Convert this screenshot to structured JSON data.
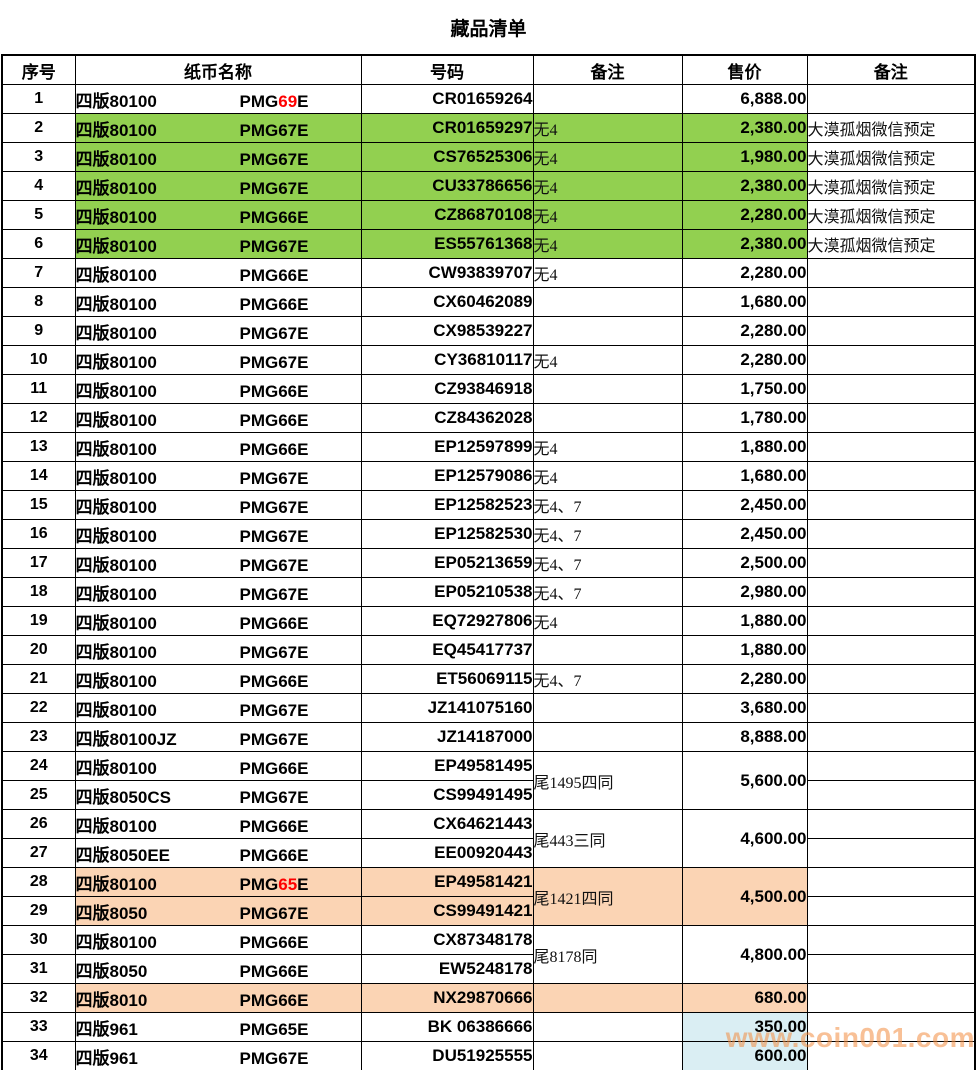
{
  "title": "藏品清单",
  "watermark": "www.coin001.com",
  "colors": {
    "highlight_green": "#92D050",
    "highlight_peach": "#FBD4B4",
    "highlight_blue": "#DAEEF3",
    "grade_red": "#FF0000",
    "watermark_orange": "#F28C40"
  },
  "table": {
    "headers": [
      "序号",
      "纸币名称",
      "号码",
      "备注",
      "售价",
      "备注"
    ],
    "rows": [
      {
        "no": "1",
        "name": "四版80100",
        "grade_parts": [
          "PMG",
          "69",
          "E"
        ],
        "number": "CR01659264",
        "remark": "",
        "price": "6,888.00",
        "note": ""
      },
      {
        "no": "2",
        "name": "四版80100",
        "grade": "PMG67E",
        "number": "CR01659297",
        "remark": "无4",
        "price": "2,380.00",
        "note": "大漠孤烟微信预定",
        "bg": "green"
      },
      {
        "no": "3",
        "name": "四版80100",
        "grade": "PMG67E",
        "number": "CS76525306",
        "remark": "无4",
        "price": "1,980.00",
        "note": "大漠孤烟微信预定",
        "bg": "green"
      },
      {
        "no": "4",
        "name": "四版80100",
        "grade": "PMG67E",
        "number": "CU33786656",
        "remark": "无4",
        "price": "2,380.00",
        "note": "大漠孤烟微信预定",
        "bg": "green"
      },
      {
        "no": "5",
        "name": "四版80100",
        "grade": "PMG66E",
        "number": "CZ86870108",
        "remark": "无4",
        "price": "2,280.00",
        "note": "大漠孤烟微信预定",
        "bg": "green"
      },
      {
        "no": "6",
        "name": "四版80100",
        "grade": "PMG67E",
        "number": "ES55761368",
        "remark": "无4",
        "price": "2,380.00",
        "note": "大漠孤烟微信预定",
        "bg": "green"
      },
      {
        "no": "7",
        "name": "四版80100",
        "grade": "PMG66E",
        "number": "CW93839707",
        "remark": "无4",
        "price": "2,280.00",
        "note": ""
      },
      {
        "no": "8",
        "name": "四版80100",
        "grade": "PMG66E",
        "number": "CX60462089",
        "remark": "",
        "price": "1,680.00",
        "note": ""
      },
      {
        "no": "9",
        "name": "四版80100",
        "grade": "PMG67E",
        "number": "CX98539227",
        "remark": "",
        "price": "2,280.00",
        "note": ""
      },
      {
        "no": "10",
        "name": "四版80100",
        "grade": "PMG67E",
        "number": "CY36810117",
        "remark": "无4",
        "price": "2,280.00",
        "note": ""
      },
      {
        "no": "11",
        "name": "四版80100",
        "grade": "PMG66E",
        "number": "CZ93846918",
        "remark": "",
        "price": "1,750.00",
        "note": ""
      },
      {
        "no": "12",
        "name": "四版80100",
        "grade": "PMG66E",
        "number": "CZ84362028",
        "remark": "",
        "price": "1,780.00",
        "note": ""
      },
      {
        "no": "13",
        "name": "四版80100",
        "grade": "PMG66E",
        "number": "EP12597899",
        "remark": "无4",
        "price": "1,880.00",
        "note": ""
      },
      {
        "no": "14",
        "name": "四版80100",
        "grade": "PMG67E",
        "number": "EP12579086",
        "remark": "无4",
        "price": "1,680.00",
        "note": ""
      },
      {
        "no": "15",
        "name": "四版80100",
        "grade": "PMG67E",
        "number": "EP12582523",
        "remark": "无4、7",
        "price": "2,450.00",
        "note": ""
      },
      {
        "no": "16",
        "name": "四版80100",
        "grade": "PMG67E",
        "number": "EP12582530",
        "remark": "无4、7",
        "price": "2,450.00",
        "note": ""
      },
      {
        "no": "17",
        "name": "四版80100",
        "grade": "PMG67E",
        "number": "EP05213659",
        "remark": "无4、7",
        "price": "2,500.00",
        "note": ""
      },
      {
        "no": "18",
        "name": "四版80100",
        "grade": "PMG67E",
        "number": "EP05210538",
        "remark": "无4、7",
        "price": "2,980.00",
        "note": ""
      },
      {
        "no": "19",
        "name": "四版80100",
        "grade": "PMG66E",
        "number": "EQ72927806",
        "remark": "无4",
        "price": "1,880.00",
        "note": ""
      },
      {
        "no": "20",
        "name": "四版80100",
        "grade": "PMG67E",
        "number": "EQ45417737",
        "remark": "",
        "price": "1,880.00",
        "note": ""
      },
      {
        "no": "21",
        "name": "四版80100",
        "grade": "PMG66E",
        "number": "ET56069115",
        "remark": "无4、7",
        "price": "2,280.00",
        "note": ""
      },
      {
        "no": "22",
        "name": "四版80100",
        "grade": "PMG67E",
        "number": "JZ141075160",
        "remark": "",
        "price": "3,680.00",
        "note": ""
      },
      {
        "no": "23",
        "name": "四版80100JZ",
        "grade": "PMG67E",
        "number": "JZ14187000",
        "remark": "",
        "price": "8,888.00",
        "note": ""
      },
      {
        "no": "24",
        "name": "四版80100",
        "grade": "PMG66E",
        "number": "EP49581495",
        "merge_remark": "尾1495四同",
        "merge_price": "5,600.00",
        "merge_span": 2,
        "note": ""
      },
      {
        "no": "25",
        "name": "四版8050CS",
        "grade": "PMG67E",
        "number": "CS99491495",
        "merged": true,
        "note": ""
      },
      {
        "no": "26",
        "name": "四版80100",
        "grade": "PMG66E",
        "number": "CX64621443",
        "merge_remark": "尾443三同",
        "merge_price": "4,600.00",
        "merge_span": 2,
        "note": ""
      },
      {
        "no": "27",
        "name": "四版8050EE",
        "grade": "PMG66E",
        "number": "EE00920443",
        "merged": true,
        "note": ""
      },
      {
        "no": "28",
        "name": "四版80100",
        "grade_parts": [
          "PMG",
          "65",
          "E"
        ],
        "number": "EP49581421",
        "merge_remark": "尾1421四同",
        "merge_price": "4,500.00",
        "merge_span": 2,
        "note": "",
        "bg": "peach"
      },
      {
        "no": "29",
        "name": "四版8050",
        "grade": "PMG67E",
        "number": "CS99491421",
        "merged": true,
        "note": "",
        "bg": "peach"
      },
      {
        "no": "30",
        "name": "四版80100",
        "grade": "PMG66E",
        "number": "CX87348178",
        "merge_remark": "尾8178同",
        "merge_price": "4,800.00",
        "merge_span": 2,
        "note": ""
      },
      {
        "no": "31",
        "name": "四版8050",
        "grade": "PMG66E",
        "number": "EW5248178",
        "merged": true,
        "note": ""
      },
      {
        "no": "32",
        "name": "四版8010",
        "grade": "PMG66E",
        "number": "NX29870666",
        "remark": "",
        "price": "680.00",
        "note": "",
        "bg": "peach"
      },
      {
        "no": "33",
        "name": "四版961",
        "grade": "PMG65E",
        "number": "BK 06386666",
        "remark": "",
        "price": "350.00",
        "note": "",
        "price_bg": "blue"
      },
      {
        "no": "34",
        "name": "四版961",
        "grade": "PMG67E",
        "number": "DU51925555",
        "remark": "",
        "price": "600.00",
        "note": "",
        "price_bg": "blue"
      }
    ]
  }
}
